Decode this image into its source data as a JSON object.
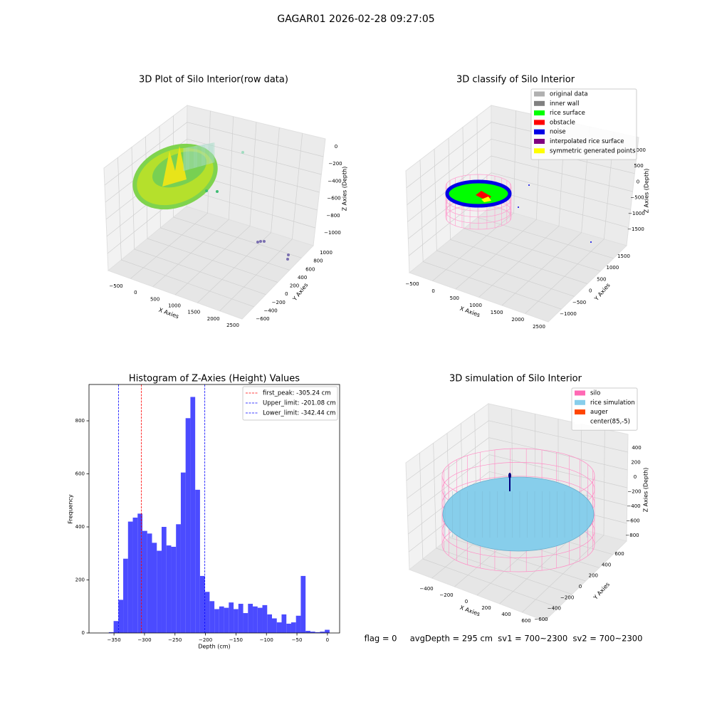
{
  "title": "GAGAR01 2026-02-28 09:27:05",
  "footer": "flag = 0     avgDepth = 295 cm  sv1 = 700~2300  sv2 = 700~2300",
  "chart_data": [
    {
      "type": "scatter3d",
      "title": "3D Plot of Silo Interior(row data)",
      "xlabel": "X Axies",
      "ylabel": "Y Axies",
      "zlabel": "Z Axies (Depth)",
      "xticks": [
        {
          "value": -500,
          "label": "−500"
        },
        0,
        500,
        1000,
        1500,
        2000,
        2500
      ],
      "yticks": [
        {
          "value": -600,
          "label": "−600"
        },
        {
          "value": -400,
          "label": "−400"
        },
        {
          "value": -200,
          "label": "−200"
        },
        0,
        200,
        400,
        600,
        800,
        1000
      ],
      "zticks": [
        0,
        {
          "value": -200,
          "label": "−200"
        },
        {
          "value": -400,
          "label": "−400"
        },
        {
          "value": -600,
          "label": "−600"
        },
        {
          "value": -800,
          "label": "−800"
        },
        {
          "value": -1000,
          "label": "−1000"
        }
      ]
    },
    {
      "type": "scatter3d",
      "title": "3D classify of Silo Interior",
      "xlabel": "X Axies",
      "ylabel": "Y Axies",
      "zlabel": "Z Axies (Depth)",
      "xticks": [
        {
          "value": -500,
          "label": "−500"
        },
        0,
        500,
        1000,
        1500,
        2000,
        2500
      ],
      "yticks": [
        {
          "value": -1000,
          "label": "−1000"
        },
        {
          "value": -500,
          "label": "−500"
        },
        0,
        500,
        1000,
        1500
      ],
      "zticks": [
        {
          "value": -1500,
          "label": "−1500"
        },
        {
          "value": -1000,
          "label": "−1000"
        },
        {
          "value": -500,
          "label": "−500"
        },
        0,
        500,
        1000
      ],
      "legend": [
        {
          "name": "original data",
          "color": "#b0b0b0"
        },
        {
          "name": "inner wall",
          "color": "#808080"
        },
        {
          "name": "rice surface",
          "color": "#00ff00"
        },
        {
          "name": "obstacle",
          "color": "#ff0000"
        },
        {
          "name": "noise",
          "color": "#0000e6"
        },
        {
          "name": "interpolated rice surface",
          "color": "#800080"
        },
        {
          "name": "symmetric generated points",
          "color": "#ffff00"
        }
      ]
    },
    {
      "type": "histogram",
      "title": "Histogram of Z-Axies (Height) Values",
      "xlabel": "Depth (cm)",
      "ylabel": "Frequency",
      "color": "#4b4bff",
      "bins": [
        -358.5,
        -350.63,
        -342.76,
        -334.89,
        -327.02,
        -319.15,
        -311.28,
        -303.41,
        -295.54,
        -287.67,
        -279.8,
        -271.93,
        -264.06,
        -256.19,
        -248.32,
        -240.45,
        -232.58,
        -224.71,
        -216.84,
        -208.97,
        -201.1,
        -193.23,
        -185.36,
        -177.49,
        -169.62,
        -161.75,
        -153.88,
        -146.01,
        -138.14,
        -130.27,
        -122.4,
        -114.53,
        -106.66,
        -98.79,
        -90.92,
        -83.05,
        -75.18,
        -67.31,
        -59.44,
        -51.57,
        -43.7,
        -35.83,
        -27.96,
        -20.09,
        -12.22,
        -4.35,
        3.52
      ],
      "counts": [
        3,
        45,
        125,
        280,
        420,
        435,
        450,
        385,
        375,
        340,
        310,
        400,
        330,
        325,
        410,
        605,
        810,
        890,
        540,
        215,
        155,
        120,
        90,
        100,
        95,
        115,
        90,
        110,
        75,
        110,
        100,
        95,
        105,
        70,
        55,
        40,
        70,
        35,
        40,
        65,
        215,
        8,
        5,
        3,
        5,
        12
      ],
      "xlim": [
        -391,
        20
      ],
      "ylim": [
        0,
        937
      ],
      "xticks": [
        {
          "value": -350,
          "label": "−350"
        },
        {
          "value": -300,
          "label": "−300"
        },
        {
          "value": -250,
          "label": "−250"
        },
        {
          "value": -200,
          "label": "−200"
        },
        {
          "value": -150,
          "label": "−150"
        },
        {
          "value": -100,
          "label": "−100"
        },
        {
          "value": -50,
          "label": "−50"
        },
        0
      ],
      "yticks": [
        0,
        200,
        400,
        600,
        800
      ],
      "lines": [
        {
          "label": "first_peak: -305.24 cm",
          "value": -305.24,
          "color": "#ff0000"
        },
        {
          "label": "Upper_limit: -201.08 cm",
          "value": -201.08,
          "color": "#0000ff"
        },
        {
          "label": "Lower_limit: -342.44 cm",
          "value": -342.44,
          "color": "#0000ff"
        }
      ]
    },
    {
      "type": "surface3d",
      "title": "3D simulation of Silo Interior",
      "xlabel": "X Axies",
      "ylabel": "Y Axies",
      "zlabel": "Z Axies (Depth)",
      "xticks": [
        {
          "value": -400,
          "label": "−400"
        },
        {
          "value": -200,
          "label": "−200"
        },
        0,
        200,
        400,
        600
      ],
      "yticks": [
        {
          "value": -600,
          "label": "−600"
        },
        {
          "value": -400,
          "label": "−400"
        },
        {
          "value": -200,
          "label": "−200"
        },
        0,
        200,
        400,
        600
      ],
      "zticks": [
        {
          "value": -800,
          "label": "−800"
        },
        {
          "value": -600,
          "label": "−600"
        },
        {
          "value": -400,
          "label": "−400"
        },
        {
          "value": -200,
          "label": "−200"
        },
        0,
        200,
        400
      ],
      "legend": [
        {
          "name": "silo",
          "color": "#ff69b4"
        },
        {
          "name": "rice simulation",
          "color": "#87ceeb"
        },
        {
          "name": "auger",
          "color": "#ff4500"
        },
        {
          "name": "center(85,-5)",
          "color": "#ffffff"
        }
      ]
    }
  ]
}
